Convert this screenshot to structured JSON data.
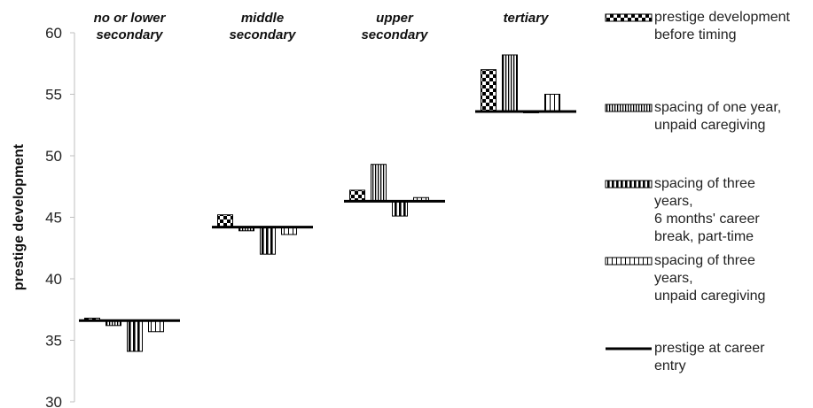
{
  "chart_data": {
    "type": "bar",
    "title": "",
    "xlabel": "",
    "ylabel": "prestige development",
    "ylim": [
      30,
      60
    ],
    "yticks": [
      30,
      35,
      40,
      45,
      50,
      55,
      60
    ],
    "grid": false,
    "legend_position": "right",
    "categories": [
      [
        "no or lower",
        "secondary"
      ],
      [
        "middle",
        "secondary"
      ],
      [
        "upper",
        "secondary"
      ],
      [
        "tertiary"
      ]
    ],
    "baseline": {
      "name": [
        "prestige at career",
        "entry"
      ],
      "values": [
        36.6,
        44.2,
        46.3,
        53.6
      ]
    },
    "series": [
      {
        "name": [
          "prestige development",
          "before timing"
        ],
        "pattern": "checker",
        "values": [
          36.8,
          45.2,
          47.2,
          57.0
        ]
      },
      {
        "name": [
          "spacing of one year,",
          "unpaid caregiving"
        ],
        "pattern": "vertical-lines",
        "values": [
          36.2,
          43.9,
          49.3,
          58.2
        ]
      },
      {
        "name": [
          "spacing of three",
          "years,",
          "6 months' career",
          "break, part-time"
        ],
        "pattern": "wide-vertical-stripes",
        "values": [
          34.1,
          42.0,
          45.1,
          53.5
        ]
      },
      {
        "name": [
          "spacing of three",
          "years,",
          "unpaid caregiving"
        ],
        "pattern": "sparse-vertical-lines",
        "values": [
          35.7,
          43.6,
          46.6,
          55.0
        ]
      }
    ],
    "colors": {
      "stroke": "#000000",
      "axis": "#bfbfbf",
      "text": "#222222"
    }
  }
}
